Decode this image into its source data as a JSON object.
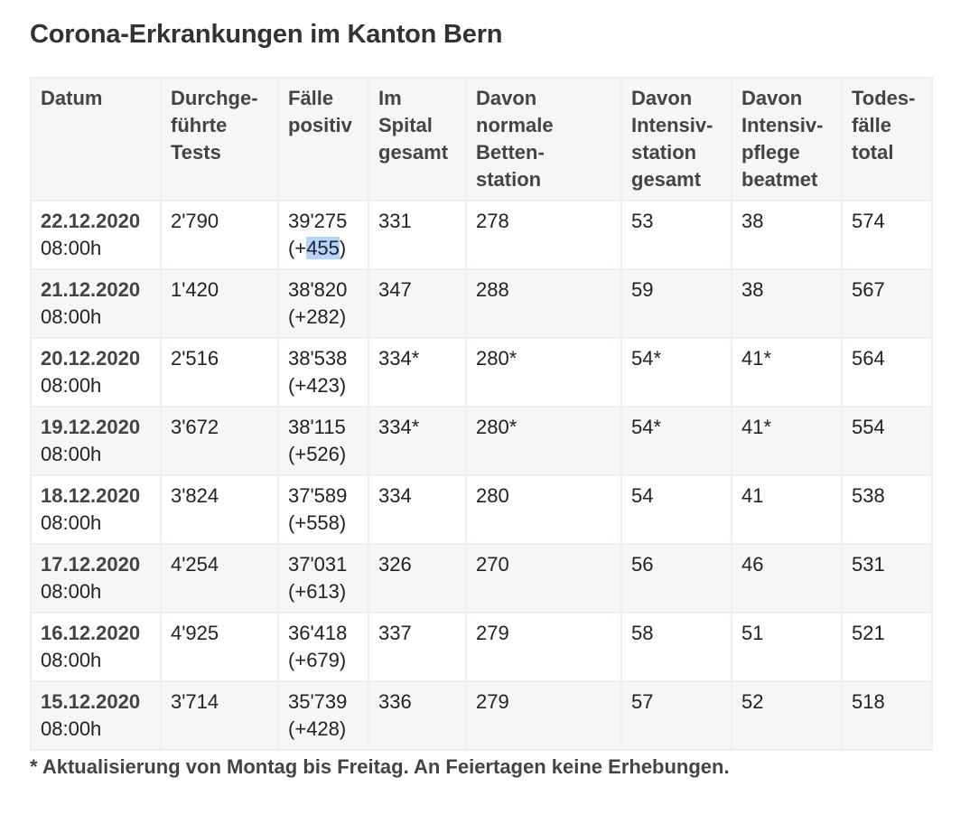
{
  "page": {
    "title": "Corona-Erkrankungen im Kanton Bern",
    "footnote": "* Aktualisierung von Montag bis Freitag. An Feiertagen keine Erhebungen.",
    "colors": {
      "header_bg": "#f7f5f6",
      "stripe_bg": "#f7f5f6",
      "border": "#efeded",
      "table_bottom_border": "#c8d9ea",
      "selection": "#b3d4fc"
    }
  },
  "table": {
    "headers": [
      "Datum",
      "Durchge-\nführte\nTests",
      "Fälle\npositiv",
      "Im\nSpital\ngesamt",
      "Davon\nnormale\nBetten-\nstation",
      "Davon\nIntensiv-\nstation\ngesamt",
      "Davon\nIntensiv-\npflege\nbeatmet",
      "Todes-\nfälle\ntotal"
    ],
    "rows": [
      {
        "date": "22.12.2020",
        "time": "08:00h",
        "tests": "2'790",
        "cases": "39'275",
        "delta_prefix": "(+",
        "delta": "455",
        "delta_suffix": ")",
        "hospital": "331",
        "normal_beds": "278",
        "icu": "53",
        "ventilated": "38",
        "deaths": "574"
      },
      {
        "date": "21.12.2020",
        "time": "08:00h",
        "tests": "1'420",
        "cases": "38'820",
        "delta_prefix": "(+",
        "delta": "282",
        "delta_suffix": ")",
        "hospital": "347",
        "normal_beds": "288",
        "icu": "59",
        "ventilated": "38",
        "deaths": "567"
      },
      {
        "date": "20.12.2020",
        "time": "08:00h",
        "tests": "2'516",
        "cases": "38'538",
        "delta_prefix": "(+",
        "delta": "423",
        "delta_suffix": ")",
        "hospital": "334*",
        "normal_beds": "280*",
        "icu": "54*",
        "ventilated": "41*",
        "deaths": "564"
      },
      {
        "date": "19.12.2020",
        "time": "08:00h",
        "tests": "3'672",
        "cases": "38'115",
        "delta_prefix": "(+",
        "delta": "526",
        "delta_suffix": ")",
        "hospital": "334*",
        "normal_beds": "280*",
        "icu": "54*",
        "ventilated": "41*",
        "deaths": "554"
      },
      {
        "date": "18.12.2020",
        "time": "08:00h",
        "tests": "3'824",
        "cases": "37'589",
        "delta_prefix": "(+",
        "delta": "558",
        "delta_suffix": ")",
        "hospital": "334",
        "normal_beds": "280",
        "icu": "54",
        "ventilated": "41",
        "deaths": "538"
      },
      {
        "date": "17.12.2020",
        "time": "08:00h",
        "tests": "4'254",
        "cases": "37'031",
        "delta_prefix": "(+",
        "delta": "613",
        "delta_suffix": ")",
        "hospital": "326",
        "normal_beds": "270",
        "icu": "56",
        "ventilated": "46",
        "deaths": "531"
      },
      {
        "date": "16.12.2020",
        "time": "08:00h",
        "tests": "4'925",
        "cases": "36'418",
        "delta_prefix": "(+",
        "delta": "679",
        "delta_suffix": ")",
        "hospital": "337",
        "normal_beds": "279",
        "icu": "58",
        "ventilated": "51",
        "deaths": "521"
      },
      {
        "date": "15.12.2020",
        "time": "08:00h",
        "tests": "3'714",
        "cases": "35'739",
        "delta_prefix": "(+",
        "delta": "428",
        "delta_suffix": ")",
        "hospital": "336",
        "normal_beds": "279",
        "icu": "57",
        "ventilated": "52",
        "deaths": "518"
      }
    ]
  }
}
